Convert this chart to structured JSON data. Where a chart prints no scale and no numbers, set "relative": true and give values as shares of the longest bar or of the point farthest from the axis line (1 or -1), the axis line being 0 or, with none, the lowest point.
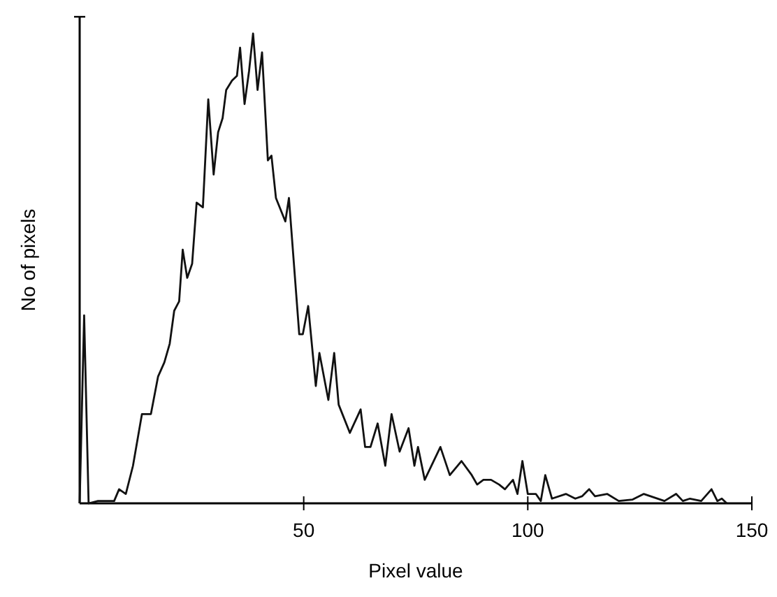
{
  "chart_data": {
    "type": "line",
    "xlabel": "Pixel value",
    "ylabel": "No of pixels",
    "relative": true,
    "xlim": [
      0,
      150
    ],
    "xticks": [
      50,
      100,
      150
    ],
    "line_style": "solid",
    "series": [
      {
        "color": "#111111",
        "x": [
          0,
          1,
          2,
          4.1,
          7.7,
          8.8,
          10.3,
          11.9,
          13.9,
          15.9,
          17.5,
          18.9,
          20.1,
          21.1,
          22.2,
          23.0,
          24.0,
          25.1,
          26.1,
          27.5,
          28.7,
          29.9,
          30.9,
          31.9,
          32.7,
          34.0,
          35.1,
          35.8,
          36.8,
          37.8,
          38.7,
          39.7,
          40.7,
          42.0,
          42.8,
          43.8,
          45.9,
          46.7,
          49.0,
          49.8,
          51.0,
          52.7,
          53.5,
          55.5,
          56.8,
          57.8,
          60.3,
          62.7,
          63.7,
          64.9,
          66.5,
          68.2,
          69.6,
          71.4,
          73.4,
          74.7,
          75.5,
          77.0,
          80.5,
          82.6,
          85.2,
          87.5,
          88.7,
          90.1,
          91.8,
          93.6,
          94.9,
          96.7,
          97.7,
          98.8,
          100,
          101.8,
          102.9,
          103.9,
          105.4,
          108.5,
          110.6,
          112.1,
          113.7,
          115.0,
          117.7,
          120.3,
          123.4,
          125.9,
          130.5,
          133.1,
          134.6,
          136.2,
          138.7,
          141.0,
          142.3,
          143.3,
          144.4
        ],
        "values": [
          0,
          0.4,
          0,
          0.005,
          0.005,
          0.03,
          0.02,
          0.08,
          0.19,
          0.19,
          0.27,
          0.3,
          0.34,
          0.41,
          0.43,
          0.54,
          0.48,
          0.51,
          0.64,
          0.63,
          0.86,
          0.7,
          0.79,
          0.82,
          0.88,
          0.9,
          0.91,
          0.97,
          0.85,
          0.92,
          1,
          0.88,
          0.96,
          0.73,
          0.74,
          0.65,
          0.6,
          0.65,
          0.36,
          0.36,
          0.42,
          0.25,
          0.32,
          0.22,
          0.32,
          0.21,
          0.15,
          0.2,
          0.12,
          0.12,
          0.17,
          0.08,
          0.19,
          0.11,
          0.16,
          0.08,
          0.12,
          0.05,
          0.12,
          0.06,
          0.09,
          0.06,
          0.04,
          0.05,
          0.05,
          0.04,
          0.03,
          0.05,
          0.02,
          0.09,
          0.02,
          0.02,
          0.005,
          0.06,
          0.01,
          0.02,
          0.01,
          0.015,
          0.03,
          0.015,
          0.02,
          0.005,
          0.008,
          0.02,
          0.005,
          0.02,
          0.005,
          0.01,
          0.005,
          0.03,
          0.005,
          0.01,
          0
        ]
      }
    ]
  }
}
